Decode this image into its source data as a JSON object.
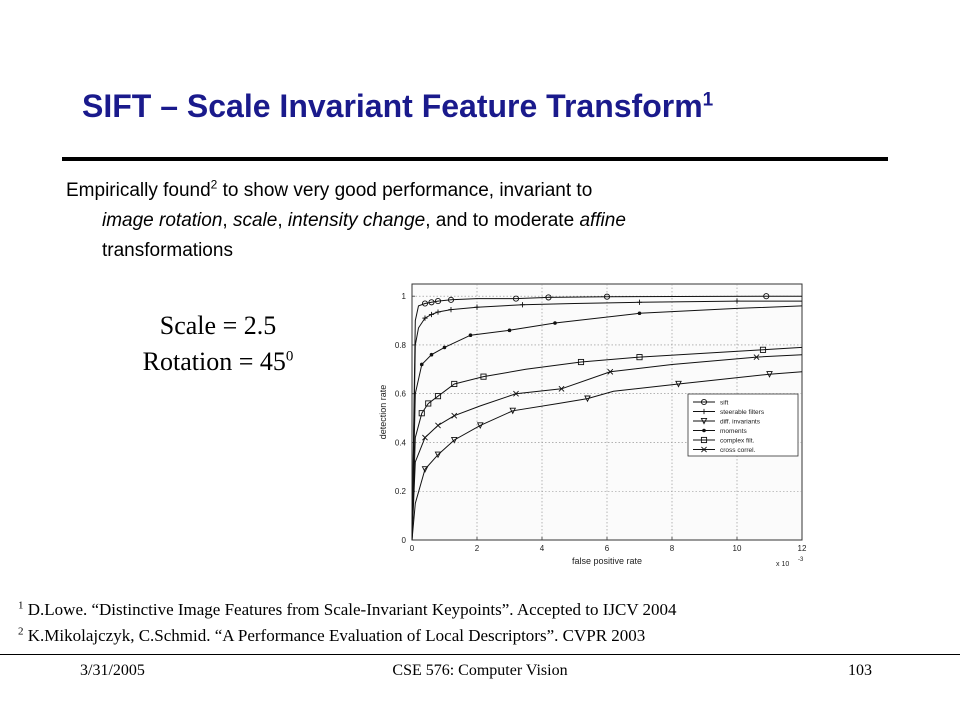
{
  "slide": {
    "title": "SIFT – Scale Invariant Feature Transform",
    "title_sup": "1",
    "body_line1_a": "Empirically found",
    "body_line1_sup": "2",
    "body_line1_b": " to show very good performance, invariant to",
    "body_line2_i1": "image rotation",
    "body_line2_s1": ", ",
    "body_line2_i2": "scale",
    "body_line2_s2": ", ",
    "body_line2_i3": "intensity change",
    "body_line2_s3": ", and to moderate ",
    "body_line2_i4": "affine",
    "body_line3": "transformations",
    "caption_scale": "Scale = 2.5",
    "caption_rotation": "Rotation = 45",
    "caption_rotation_sup": "0",
    "footnote1_num": "1",
    "footnote1": " D.Lowe. “Distinctive Image Features from Scale-Invariant Keypoints”. Accepted to IJCV 2004",
    "footnote2_num": "2",
    "footnote2": " K.Mikolajczyk, C.Schmid. “A Performance Evaluation of Local Descriptors”. CVPR 2003",
    "footer_date": "3/31/2005",
    "footer_course": "CSE 576: Computer Vision",
    "footer_page": "103",
    "title_color": "#1a1a8c"
  },
  "chart_data": {
    "type": "line",
    "xlabel": "false positive rate",
    "ylabel": "detection rate",
    "x_multiplier": "x 10",
    "x_multiplier_exp": "-3",
    "xlim": [
      0,
      12
    ],
    "ylim": [
      0,
      1.05
    ],
    "xticks": [
      0,
      2,
      4,
      6,
      8,
      10,
      12
    ],
    "yticks": [
      0,
      0.2,
      0.4,
      0.6,
      0.8,
      1
    ],
    "xtick_labels": [
      "0",
      "2",
      "4",
      "6",
      "8",
      "10",
      "12"
    ],
    "ytick_labels": [
      "0",
      "0.2",
      "0.4",
      "0.6",
      "0.8",
      "1"
    ],
    "grid": true,
    "legend_position": "lower-right",
    "series": [
      {
        "name": "sift",
        "marker": "circle",
        "x": [
          0,
          0.1,
          0.2,
          0.4,
          0.6,
          0.8,
          1.2,
          2,
          3.2,
          4.2,
          6,
          10.9,
          12
        ],
        "y": [
          0,
          0.9,
          0.96,
          0.97,
          0.975,
          0.98,
          0.985,
          0.99,
          0.99,
          0.995,
          0.998,
          1.0,
          1.0
        ],
        "marker_x": [
          0.4,
          0.6,
          0.8,
          1.2,
          3.2,
          4.2,
          6,
          10.9
        ]
      },
      {
        "name": "steerable filters",
        "marker": "plus",
        "x": [
          0,
          0.1,
          0.2,
          0.4,
          0.6,
          0.8,
          1.2,
          2,
          3.4,
          5,
          7,
          10,
          12
        ],
        "y": [
          0,
          0.8,
          0.87,
          0.91,
          0.925,
          0.935,
          0.945,
          0.955,
          0.965,
          0.97,
          0.975,
          0.98,
          0.98
        ],
        "marker_x": [
          0.4,
          0.6,
          0.8,
          1.2,
          2,
          3.4,
          7,
          10
        ]
      },
      {
        "name": "diff. invariants",
        "marker": "triangle-down",
        "x": [
          0,
          0.1,
          0.4,
          0.8,
          1.3,
          2.1,
          3.1,
          4.5,
          5.4,
          6.2,
          8.2,
          11,
          12
        ],
        "y": [
          0,
          0.15,
          0.29,
          0.35,
          0.41,
          0.47,
          0.53,
          0.56,
          0.58,
          0.61,
          0.64,
          0.68,
          0.69
        ],
        "marker_x": [
          0.4,
          0.8,
          1.3,
          2.1,
          3.1,
          5.4,
          8.2,
          11
        ]
      },
      {
        "name": "moments",
        "marker": "dot",
        "x": [
          0,
          0.1,
          0.3,
          0.6,
          1,
          1.8,
          3,
          4.4,
          7,
          10,
          12
        ],
        "y": [
          0,
          0.6,
          0.72,
          0.76,
          0.79,
          0.84,
          0.86,
          0.89,
          0.93,
          0.95,
          0.96
        ],
        "marker_x": [
          0.3,
          0.6,
          1,
          1.8,
          3,
          4.4,
          7
        ]
      },
      {
        "name": "complex filt.",
        "marker": "square",
        "x": [
          0,
          0.1,
          0.3,
          0.5,
          0.8,
          1.3,
          2.2,
          3.5,
          5.2,
          7,
          10.8,
          12
        ],
        "y": [
          0,
          0.42,
          0.52,
          0.56,
          0.59,
          0.64,
          0.67,
          0.7,
          0.73,
          0.75,
          0.78,
          0.79
        ],
        "marker_x": [
          0.3,
          0.5,
          0.8,
          1.3,
          2.2,
          5.2,
          7,
          10.8
        ]
      },
      {
        "name": "cross correl.",
        "marker": "x",
        "x": [
          0,
          0.1,
          0.4,
          0.8,
          1.3,
          2.1,
          3.2,
          4.6,
          6.1,
          8,
          10.6,
          12
        ],
        "y": [
          0,
          0.32,
          0.42,
          0.47,
          0.51,
          0.55,
          0.6,
          0.62,
          0.69,
          0.72,
          0.75,
          0.76
        ],
        "marker_x": [
          0.4,
          0.8,
          1.3,
          3.2,
          4.6,
          6.1,
          10.6
        ]
      }
    ]
  }
}
